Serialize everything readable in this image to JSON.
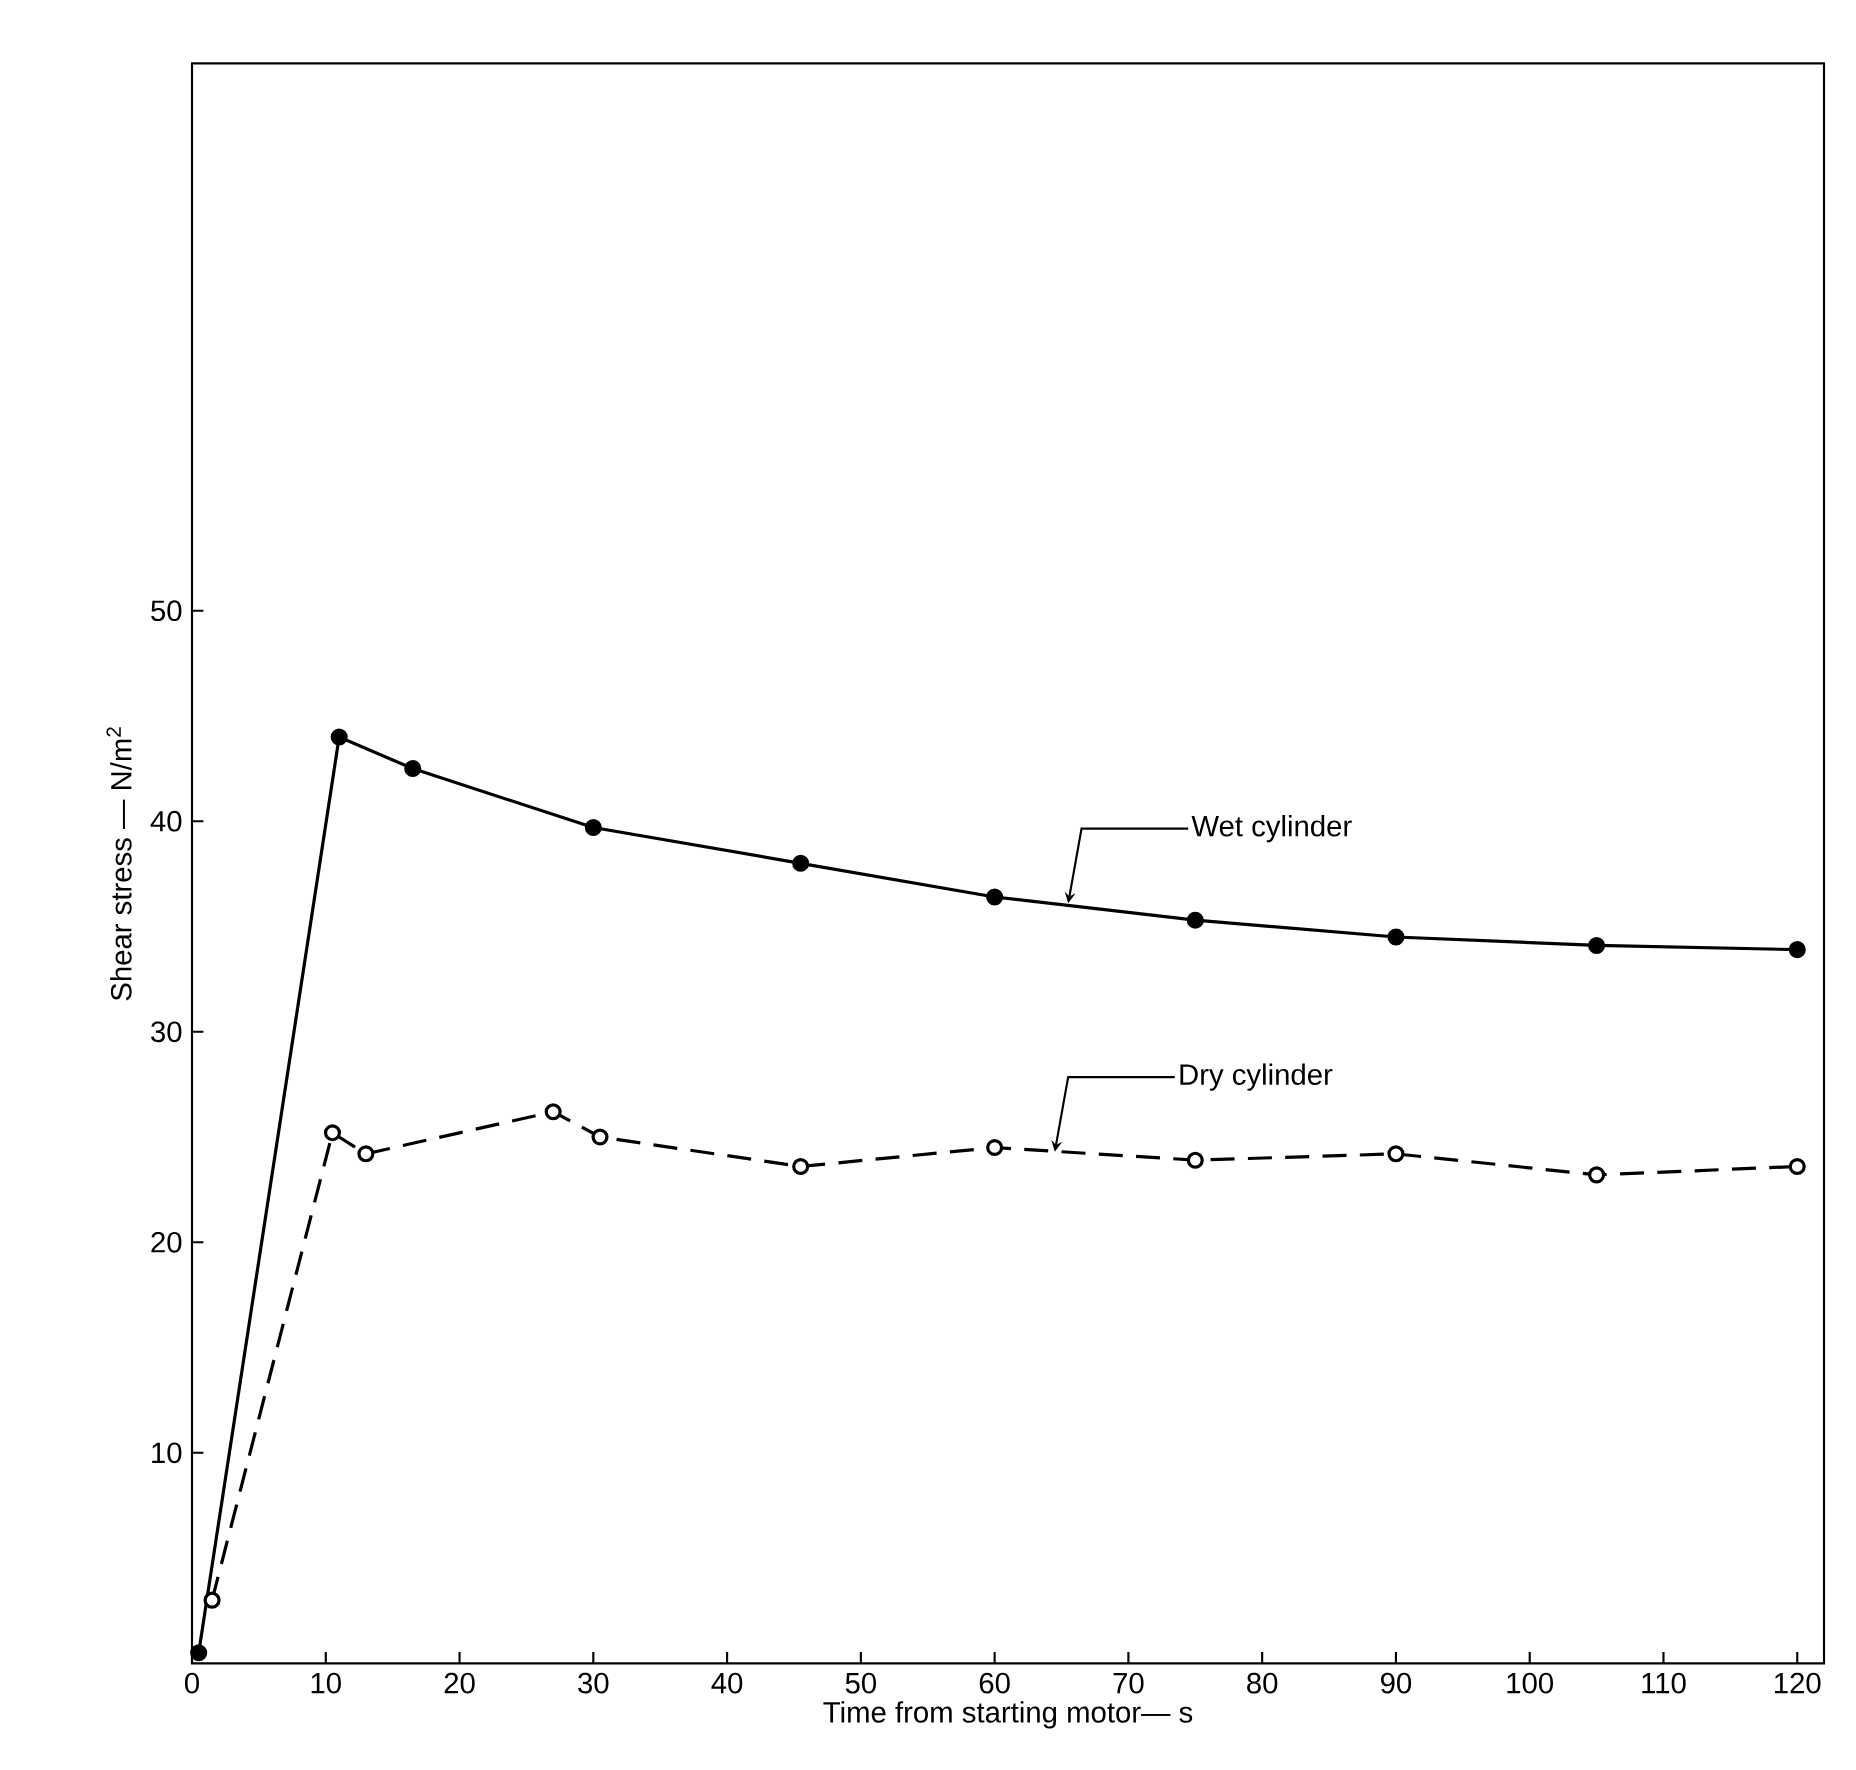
{
  "chart_data": {
    "type": "line",
    "xlabel": "Time from starting motor— s",
    "ylabel": "Shear stress — N/m$^{2}$",
    "xlim": [
      0,
      122
    ],
    "ylim": [
      0,
      76
    ],
    "xticks": [
      0,
      10,
      20,
      30,
      40,
      50,
      60,
      70,
      80,
      90,
      100,
      110,
      120
    ],
    "yticks": [
      10,
      20,
      30,
      40,
      50
    ],
    "marker": "circle",
    "series": [
      {
        "color": "#000000",
        "line_style": "solid",
        "x": [
          0.5,
          11,
          16.5,
          30,
          45.5,
          60,
          75,
          90,
          105,
          120
        ],
        "values": [
          0.5,
          44,
          42.5,
          39.7,
          38,
          36.4,
          35.3,
          34.5,
          34.1,
          33.9
        ]
      },
      {
        "color": "#000000",
        "line_style": "dashed",
        "x": [
          1.5,
          10.5,
          13,
          27,
          30.5,
          45.5,
          60,
          75,
          90,
          105,
          120
        ],
        "values": [
          3,
          25.2,
          24.2,
          26.2,
          25,
          23.6,
          24.5,
          23.9,
          24.2,
          23.2,
          23.6
        ]
      }
    ],
    "annotations": [
      {
        "text": "Wet cylinder",
        "x": 65.5,
        "y": 36.1
      },
      {
        "text": "Dry cylinder",
        "x": 64.5,
        "y": 24.3
      }
    ]
  }
}
